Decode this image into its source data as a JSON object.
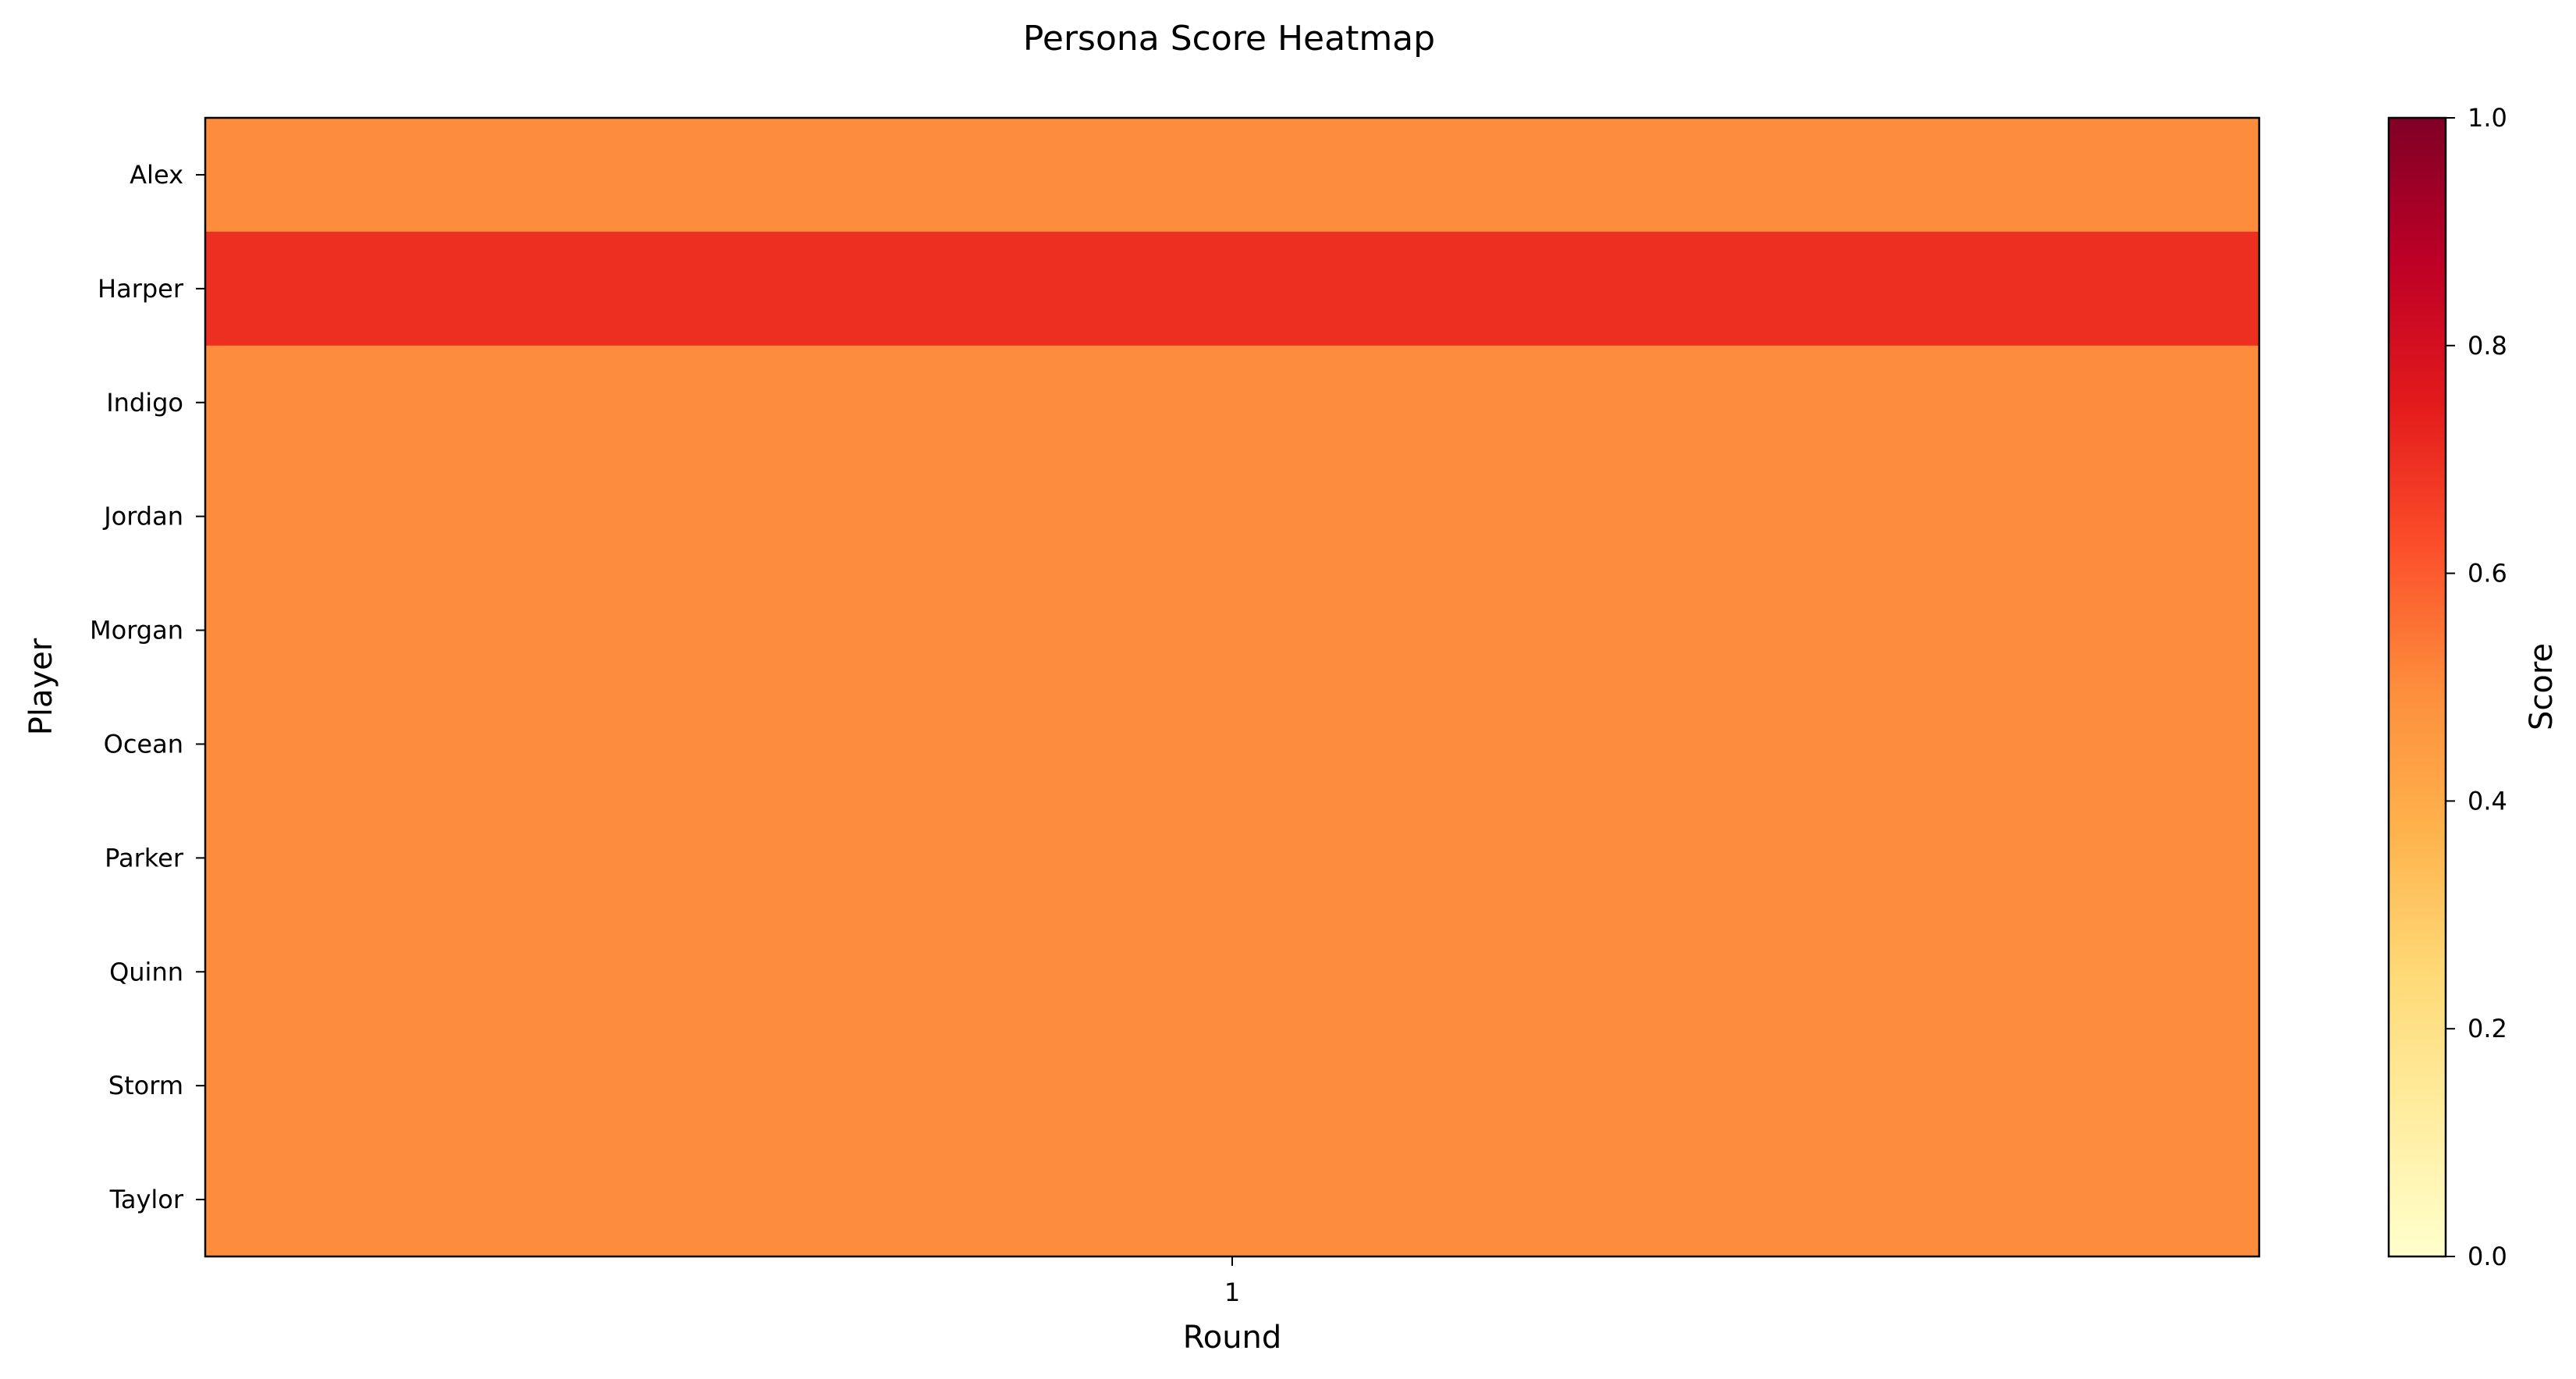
{
  "chart_data": {
    "type": "heatmap",
    "title": "Persona Score Heatmap",
    "xlabel": "Round",
    "ylabel": "Player",
    "x_categories": [
      "1"
    ],
    "y_categories": [
      "Alex",
      "Harper",
      "Indigo",
      "Jordan",
      "Morgan",
      "Ocean",
      "Parker",
      "Quinn",
      "Storm",
      "Taylor"
    ],
    "values": [
      [
        0.5
      ],
      [
        0.7
      ],
      [
        0.5
      ],
      [
        0.5
      ],
      [
        0.5
      ],
      [
        0.5
      ],
      [
        0.5
      ],
      [
        0.5
      ],
      [
        0.5
      ],
      [
        0.5
      ]
    ],
    "colorbar": {
      "label": "Score",
      "range": [
        0,
        1
      ],
      "ticks": [
        "0.0",
        "0.2",
        "0.4",
        "0.6",
        "0.8",
        "1.0"
      ],
      "colormap": "YlOrRd",
      "colors": [
        "#ffffcc",
        "#ffeda0",
        "#fed976",
        "#feb24c",
        "#fd8d3c",
        "#fc4e2a",
        "#e31a1c",
        "#bd0026",
        "#800026"
      ]
    },
    "grid": false
  }
}
